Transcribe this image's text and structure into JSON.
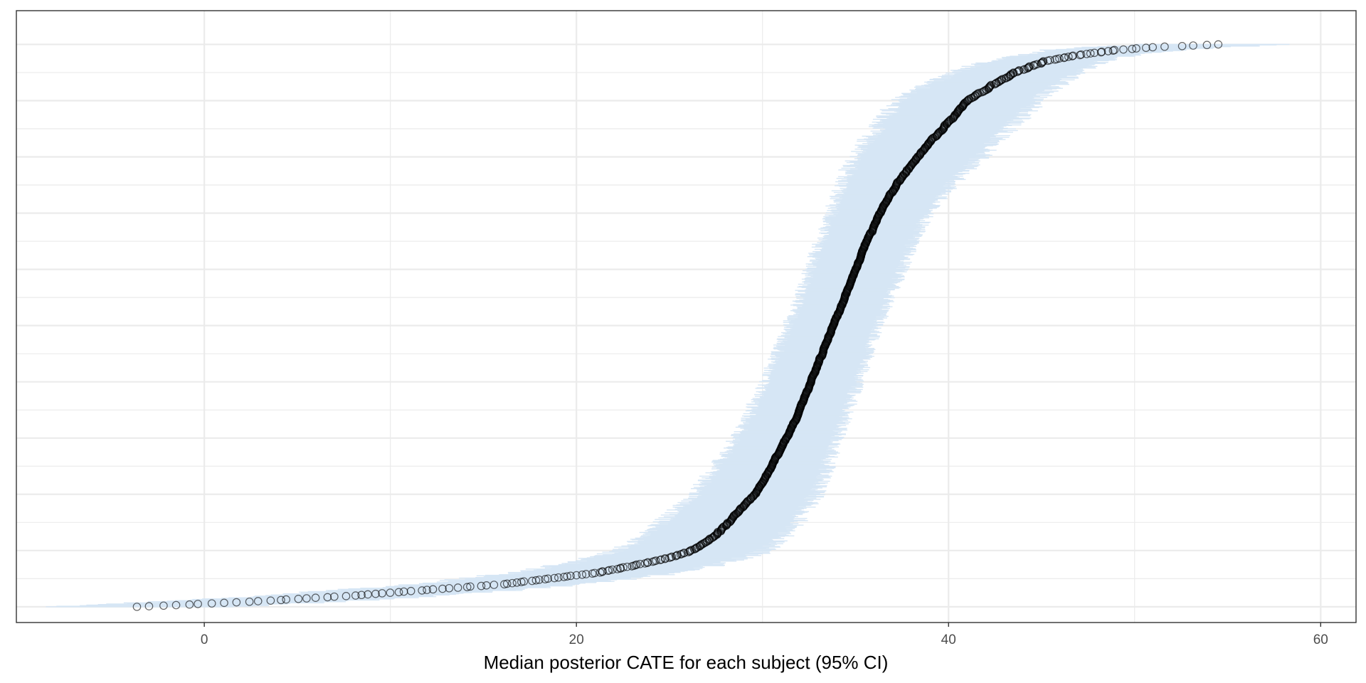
{
  "chart_data": {
    "type": "scatter",
    "title": "",
    "xlabel": "Median posterior CATE for each subject (95% CI)",
    "ylabel": "",
    "xlim": [
      -10.1,
      61.9
    ],
    "xticks": [
      0,
      20,
      40,
      60
    ],
    "ylim": [
      -0.028,
      1.06
    ],
    "grid": true,
    "legend": "none",
    "n_subjects": 1000,
    "sorted_by": "median",
    "median_quantile_curve": [
      [
        0.0,
        -3.5
      ],
      [
        0.01,
        3.0
      ],
      [
        0.02,
        8.0
      ],
      [
        0.03,
        12.0
      ],
      [
        0.04,
        16.0
      ],
      [
        0.05,
        18.5
      ],
      [
        0.06,
        21.0
      ],
      [
        0.07,
        22.6
      ],
      [
        0.08,
        24.0
      ],
      [
        0.09,
        25.3
      ],
      [
        0.1,
        26.2
      ],
      [
        0.12,
        27.2
      ],
      [
        0.15,
        28.2
      ],
      [
        0.2,
        29.6
      ],
      [
        0.25,
        30.5
      ],
      [
        0.3,
        31.3
      ],
      [
        0.35,
        32.0
      ],
      [
        0.4,
        32.6
      ],
      [
        0.45,
        33.2
      ],
      [
        0.5,
        33.8
      ],
      [
        0.55,
        34.4
      ],
      [
        0.6,
        35.0
      ],
      [
        0.65,
        35.6
      ],
      [
        0.7,
        36.3
      ],
      [
        0.75,
        37.2
      ],
      [
        0.8,
        38.3
      ],
      [
        0.85,
        39.7
      ],
      [
        0.9,
        41.0
      ],
      [
        0.93,
        42.5
      ],
      [
        0.95,
        43.6
      ],
      [
        0.97,
        45.2
      ],
      [
        0.98,
        46.8
      ],
      [
        0.99,
        49.0
      ],
      [
        0.995,
        51.0
      ],
      [
        1.0,
        54.6
      ]
    ],
    "ci_half_width": [
      [
        0.0,
        5.0
      ],
      [
        0.05,
        4.5
      ],
      [
        0.1,
        4.0
      ],
      [
        0.2,
        3.3
      ],
      [
        0.3,
        2.7
      ],
      [
        0.5,
        2.4
      ],
      [
        0.7,
        2.6
      ],
      [
        0.8,
        3.4
      ],
      [
        0.9,
        3.8
      ],
      [
        0.95,
        3.4
      ],
      [
        0.98,
        3.0
      ],
      [
        1.0,
        4.0
      ]
    ],
    "colors": {
      "ci_band": "#d6e6f5",
      "point_stroke": "#000000",
      "grid": "#ebebeb",
      "panel_border": "#333333",
      "background": "#ffffff"
    }
  }
}
